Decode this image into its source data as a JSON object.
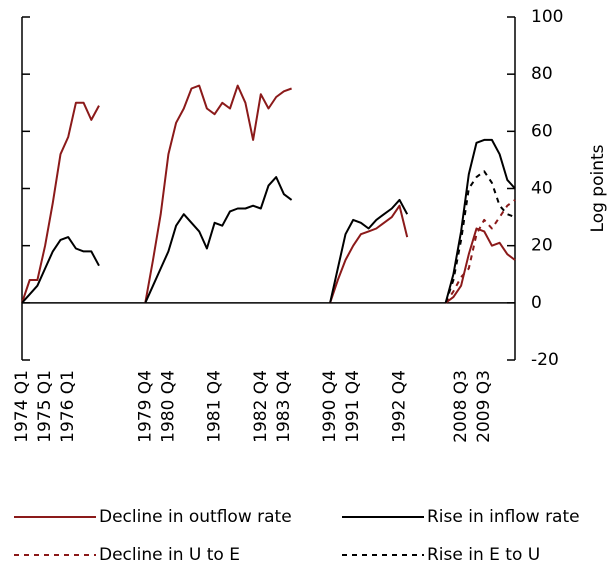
{
  "chart_data": {
    "type": "line",
    "ylabel": "Log points",
    "ylim": [
      -20,
      100
    ],
    "yticks": [
      -20,
      0,
      20,
      40,
      60,
      80,
      100
    ],
    "y_axis_side": "right",
    "legend": "bottom",
    "categories": [
      "1974 Q1",
      null,
      null,
      "1975 Q1",
      null,
      null,
      "1976 Q1",
      null,
      null,
      null,
      null,
      null,
      null,
      null,
      null,
      null,
      "1979 Q4",
      null,
      null,
      "1980 Q4",
      null,
      null,
      null,
      null,
      null,
      "1981 Q4",
      null,
      null,
      null,
      null,
      null,
      "1982 Q4",
      null,
      null,
      "1983 Q4",
      null,
      null,
      null,
      null,
      null,
      "1990 Q4",
      null,
      null,
      "1991 Q4",
      null,
      null,
      null,
      null,
      null,
      "1992 Q4",
      null,
      null,
      null,
      null,
      null,
      null,
      null,
      "2008 Q3",
      null,
      null,
      "2009 Q3",
      null,
      null,
      null,
      null
    ],
    "series": [
      {
        "name": "Decline in outflow rate",
        "color": "#8b1a1a",
        "dashed": false,
        "values": [
          0,
          8,
          8,
          20,
          35,
          52,
          58,
          70,
          70,
          64,
          69,
          null,
          null,
          null,
          null,
          null,
          0,
          15,
          31,
          52,
          63,
          68,
          75,
          76,
          68,
          66,
          70,
          68,
          76,
          70,
          57,
          73,
          68,
          72,
          74,
          75,
          null,
          null,
          null,
          null,
          0,
          8,
          15,
          20,
          24,
          25,
          26,
          28,
          30,
          34,
          23,
          null,
          null,
          null,
          null,
          0,
          2,
          6,
          17,
          26,
          25,
          20,
          21,
          17,
          15
        ]
      },
      {
        "name": "Rise in inflow rate",
        "color": "#000000",
        "dashed": false,
        "values": [
          0,
          3,
          6,
          12,
          18,
          22,
          23,
          19,
          18,
          18,
          13,
          null,
          null,
          null,
          null,
          null,
          0,
          6,
          12,
          18,
          27,
          31,
          28,
          25,
          19,
          28,
          27,
          32,
          33,
          33,
          34,
          33,
          41,
          44,
          38,
          36,
          null,
          null,
          null,
          null,
          0,
          12,
          24,
          29,
          28,
          26,
          29,
          31,
          33,
          36,
          31,
          null,
          null,
          null,
          null,
          0,
          10,
          25,
          45,
          56,
          57,
          57,
          52,
          43,
          40
        ]
      },
      {
        "name": "Decline in U to E",
        "color": "#8b1a1a",
        "dashed": true,
        "values": [
          null,
          null,
          null,
          null,
          null,
          null,
          null,
          null,
          null,
          null,
          null,
          null,
          null,
          null,
          null,
          null,
          null,
          null,
          null,
          null,
          null,
          null,
          null,
          null,
          null,
          null,
          null,
          null,
          null,
          null,
          null,
          null,
          null,
          null,
          null,
          null,
          null,
          null,
          null,
          null,
          null,
          null,
          null,
          null,
          null,
          null,
          null,
          null,
          null,
          null,
          null,
          null,
          null,
          null,
          null,
          0,
          4,
          9,
          12,
          24,
          29,
          26,
          30,
          34,
          36
        ]
      },
      {
        "name": "Rise in E to U",
        "color": "#000000",
        "dashed": true,
        "values": [
          null,
          null,
          null,
          null,
          null,
          null,
          null,
          null,
          null,
          null,
          null,
          null,
          null,
          null,
          null,
          null,
          null,
          null,
          null,
          null,
          null,
          null,
          null,
          null,
          null,
          null,
          null,
          null,
          null,
          null,
          null,
          null,
          null,
          null,
          null,
          null,
          null,
          null,
          null,
          null,
          null,
          null,
          null,
          null,
          null,
          null,
          null,
          null,
          null,
          null,
          null,
          null,
          null,
          null,
          null,
          0,
          8,
          22,
          40,
          44,
          46,
          42,
          34,
          31,
          30
        ]
      }
    ]
  }
}
